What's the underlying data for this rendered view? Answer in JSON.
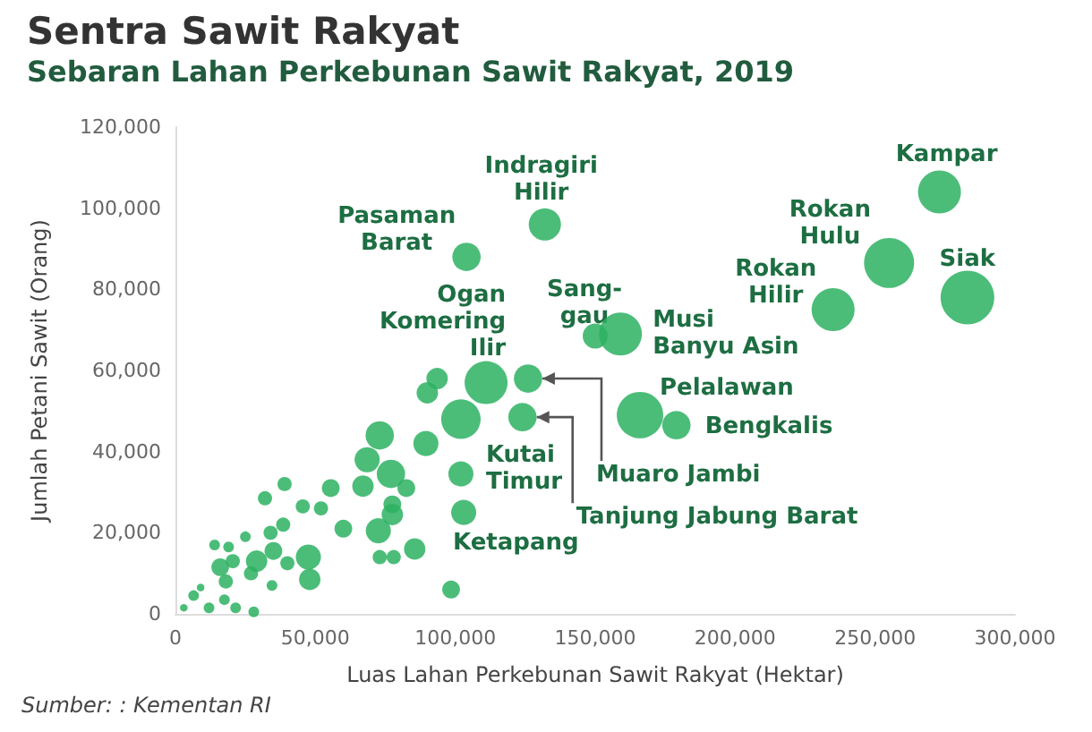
{
  "chart_data": {
    "type": "bubble",
    "title": "Sentra Sawit Rakyat",
    "subtitle": "Sebaran Lahan Perkebunan Sawit Rakyat, 2019",
    "xlabel": "Luas Lahan Perkebunan Sawit Rakyat (Hektar)",
    "ylabel": "Jumlah Petani Sawit (Orang)",
    "xlim": [
      0,
      300000
    ],
    "xticks": [
      {
        "value": 0,
        "label": "0"
      },
      {
        "value": 50000,
        "label": "50,000"
      },
      {
        "value": 100000,
        "label": "100,000"
      },
      {
        "value": 150000,
        "label": "150,000"
      },
      {
        "value": 200000,
        "label": "200,000"
      },
      {
        "value": 250000,
        "label": "250,000"
      },
      {
        "value": 300000,
        "label": "300,000"
      }
    ],
    "ylim": [
      0,
      120000
    ],
    "yticks": [
      {
        "value": 0,
        "label": "0"
      },
      {
        "value": 20000,
        "label": "20,000"
      },
      {
        "value": 40000,
        "label": "40,000"
      },
      {
        "value": 60000,
        "label": "60,000"
      },
      {
        "value": 80000,
        "label": "80,000"
      },
      {
        "value": 100000,
        "label": "100,000"
      },
      {
        "value": 120000,
        "label": "120,000"
      }
    ],
    "grid": false,
    "series": [
      {
        "color": "#2db262",
        "x": [
          273000,
          283000,
          255000,
          235000,
          132000,
          104000,
          150000,
          159000,
          111000,
          166000,
          179000,
          102000,
          103000,
          126000,
          124000,
          93500,
          90000,
          102000,
          73000,
          89500,
          68500,
          77000,
          82500,
          77500,
          77500,
          72500,
          60000,
          55500,
          67000,
          39000,
          32000,
          45500,
          52000,
          34000,
          38500,
          73000,
          78000,
          85500,
          48000,
          98500,
          47500,
          29000,
          35000,
          20500,
          16000,
          18000,
          27000,
          34500,
          17500,
          6500,
          12000,
          21500,
          28000,
          14000,
          19000,
          9000,
          3000,
          40000,
          25000
        ],
        "values": [
          104000,
          78000,
          86500,
          75000,
          96000,
          88000,
          68500,
          69000,
          57000,
          49000,
          46500,
          34500,
          25000,
          58000,
          48500,
          58000,
          54500,
          48000,
          44000,
          42000,
          38000,
          34500,
          31000,
          27000,
          24500,
          20500,
          21000,
          31000,
          31500,
          32000,
          28500,
          26500,
          26000,
          20000,
          22000,
          14000,
          14000,
          16000,
          8500,
          6000,
          14000,
          13000,
          15500,
          13000,
          11500,
          8000,
          10000,
          7000,
          3500,
          4500,
          1500,
          1500,
          500,
          17000,
          16500,
          6500,
          1500,
          12500,
          19000
        ],
        "sizes": [
          0.64,
          1,
          0.87,
          0.64,
          0.36,
          0.28,
          0.22,
          0.64,
          0.64,
          0.75,
          0.28,
          0.22,
          0.22,
          0.28,
          0.28,
          0.16,
          0.16,
          0.54,
          0.28,
          0.22,
          0.22,
          0.28,
          0.11,
          0.11,
          0.16,
          0.22,
          0.11,
          0.11,
          0.16,
          0.07,
          0.07,
          0.07,
          0.07,
          0.07,
          0.07,
          0.07,
          0.07,
          0.16,
          0.16,
          0.11,
          0.22,
          0.16,
          0.11,
          0.07,
          0.11,
          0.07,
          0.07,
          0.04,
          0.04,
          0.04,
          0.04,
          0.04,
          0.04,
          0.04,
          0.04,
          0.02,
          0.02,
          0.07,
          0.04
        ]
      }
    ],
    "annotations": [
      "Sumber: : Kementan RI",
      {
        "text": "Kampar",
        "x": 273000,
        "y": 104000
      },
      {
        "text": "Siak",
        "x": 283000,
        "y": 78000
      },
      {
        "text": "Rokan Hulu",
        "x": 255000,
        "y": 86500
      },
      {
        "text": "Rokan Hilir",
        "x": 235000,
        "y": 75000
      },
      {
        "text": "Indragiri Hilir",
        "x": 132000,
        "y": 96000
      },
      {
        "text": "Pasaman Barat",
        "x": 104000,
        "y": 88000
      },
      {
        "text": "Sang-gau",
        "x": 150000,
        "y": 68500
      },
      {
        "text": "Musi Banyu Asin",
        "x": 159000,
        "y": 69000
      },
      {
        "text": "Ogan Komering Ilir",
        "x": 111000,
        "y": 57000
      },
      {
        "text": "Pelalawan",
        "x": 166000,
        "y": 49000
      },
      {
        "text": "Bengkalis",
        "x": 179000,
        "y": 46500
      },
      {
        "text": "Kutai Timur",
        "x": 102000,
        "y": 34500
      },
      {
        "text": "Ketapang",
        "x": 103000,
        "y": 25000
      },
      {
        "text": "Muaro Jambi",
        "x": 126000,
        "y": 58000
      },
      {
        "text": "Tanjung Jabung Barat",
        "x": 124000,
        "y": 48500
      }
    ]
  }
}
